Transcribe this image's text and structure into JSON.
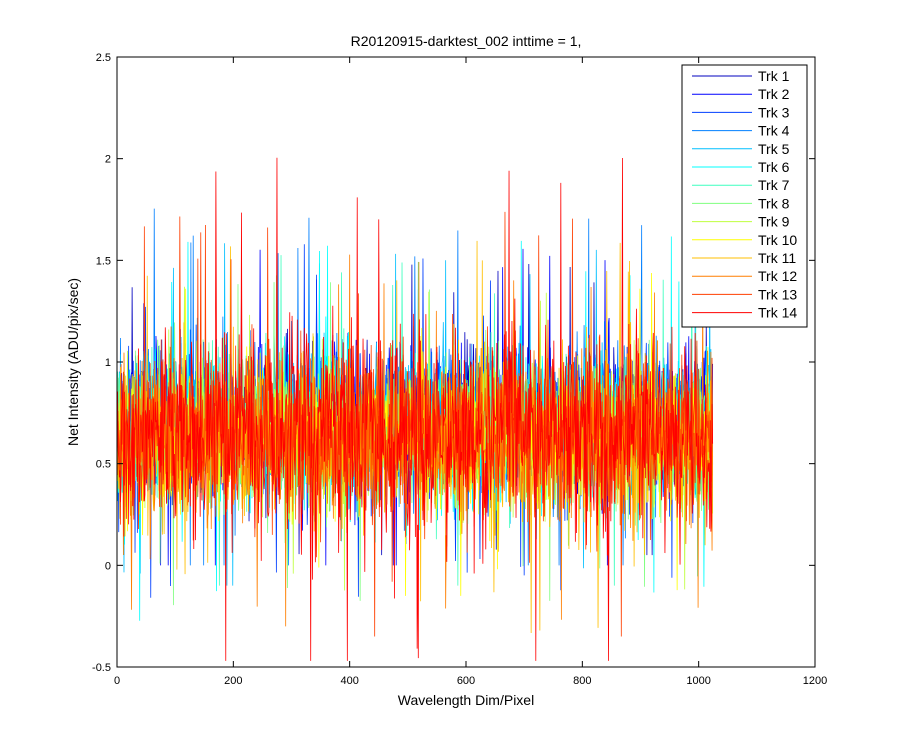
{
  "chart_data": {
    "type": "line",
    "title": "R20120915-darktest_002 inttime = 1,",
    "xlabel": "Wavelength Dim/Pixel",
    "ylabel": "Net Intensity (ADU/pix/sec)",
    "xlim": [
      0,
      1200
    ],
    "ylim": [
      -0.5,
      2.5
    ],
    "xticks": [
      0,
      200,
      400,
      600,
      800,
      1000,
      1200
    ],
    "yticks": [
      -0.5,
      0,
      0.5,
      1,
      1.5,
      2,
      2.5
    ],
    "xtick_labels": [
      "0",
      "200",
      "400",
      "600",
      "800",
      "1000",
      "1200"
    ],
    "ytick_labels": [
      "-0.5",
      "0",
      "0.5",
      "1",
      "1.5",
      "2",
      "2.5"
    ],
    "grid": false,
    "legend_position": "top-right",
    "x_range": [
      1,
      1024
    ],
    "series": [
      {
        "name": "Trk 1",
        "color": "#0000bf",
        "mean": 0.72,
        "min": 0.05,
        "max": 1.55
      },
      {
        "name": "Trk 2",
        "color": "#0000ff",
        "mean": 0.72,
        "min": 0.0,
        "max": 1.7
      },
      {
        "name": "Trk 3",
        "color": "#003fff",
        "mean": 0.7,
        "min": -0.25,
        "max": 1.6
      },
      {
        "name": "Trk 4",
        "color": "#007fff",
        "mean": 0.7,
        "min": 0.0,
        "max": 1.78
      },
      {
        "name": "Trk 5",
        "color": "#00bfff",
        "mean": 0.68,
        "min": -0.1,
        "max": 1.6
      },
      {
        "name": "Trk 6",
        "color": "#00ffff",
        "mean": 0.67,
        "min": -0.3,
        "max": 1.62
      },
      {
        "name": "Trk 7",
        "color": "#3fffbf",
        "mean": 0.66,
        "min": -0.1,
        "max": 1.55
      },
      {
        "name": "Trk 8",
        "color": "#7fff7f",
        "mean": 0.65,
        "min": -0.25,
        "max": 1.5
      },
      {
        "name": "Trk 9",
        "color": "#bfff3f",
        "mean": 0.64,
        "min": -0.2,
        "max": 1.5
      },
      {
        "name": "Trk 10",
        "color": "#ffff00",
        "mean": 0.63,
        "min": -0.15,
        "max": 1.45
      },
      {
        "name": "Trk 11",
        "color": "#ffbf00",
        "mean": 0.62,
        "min": -0.45,
        "max": 1.6
      },
      {
        "name": "Trk 12",
        "color": "#ff7f00",
        "mean": 0.62,
        "min": -0.3,
        "max": 1.55
      },
      {
        "name": "Trk 13",
        "color": "#ff3f00",
        "mean": 0.64,
        "min": -0.35,
        "max": 1.75
      },
      {
        "name": "Trk 14",
        "color": "#ff0000",
        "mean": 0.64,
        "min": -0.47,
        "max": 2.03
      }
    ]
  }
}
